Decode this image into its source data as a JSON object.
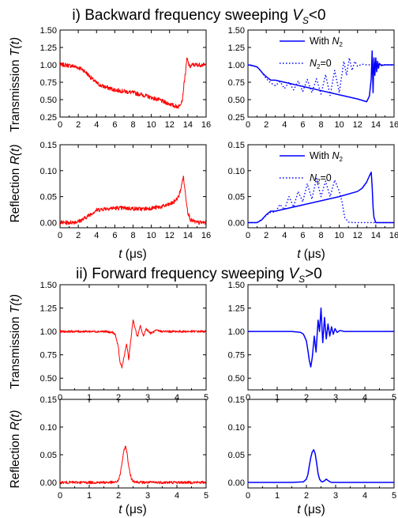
{
  "headings": {
    "section_i": {
      "text": "i) Backward frequency sweeping ",
      "var": "V",
      "sub": "S",
      "rel": "<0"
    },
    "section_ii": {
      "text": "ii) Forward frequency sweeping ",
      "var": "V",
      "sub": "S",
      "rel": ">0"
    }
  },
  "labels": {
    "transmission": "Transmission ",
    "transmission_var": "T(t)",
    "reflection": "Reflection ",
    "reflection_var": "R(t)",
    "time_var": "t",
    "time_unit": " (μs)"
  },
  "legend": {
    "with_prefix": "With ",
    "with_var": "N",
    "with_sub": "2",
    "zero_var": "N",
    "zero_sub": "2",
    "zero_suffix": "=0"
  },
  "colors": {
    "experiment": "#ff0000",
    "theory": "#0000ff",
    "axes": "#000000"
  },
  "chart_data": [
    {
      "id": "i-exp-T",
      "type": "line",
      "xlim": [
        0,
        16
      ],
      "ylim": [
        0.25,
        1.5
      ],
      "xticks": [
        "0",
        "2",
        "4",
        "6",
        "8",
        "10",
        "12",
        "14",
        "16"
      ],
      "yticks": [
        "0.25",
        "0.50",
        "0.75",
        "1.00",
        "1.25",
        "1.50"
      ],
      "series": [
        {
          "style": "solid",
          "color": "#ff0000",
          "noise": 0.03,
          "x": [
            0,
            0.5,
            1,
            1.5,
            2,
            2.5,
            3,
            3.5,
            4,
            4.5,
            5,
            6,
            7,
            8,
            9,
            10,
            11,
            11.5,
            12,
            12.5,
            13,
            13.4,
            13.6,
            13.8,
            13.9,
            14,
            14.2,
            14.5,
            15,
            16
          ],
          "y": [
            1.0,
            1.0,
            0.99,
            0.98,
            0.96,
            0.93,
            0.87,
            0.8,
            0.74,
            0.7,
            0.68,
            0.64,
            0.62,
            0.6,
            0.57,
            0.53,
            0.49,
            0.46,
            0.44,
            0.41,
            0.4,
            0.5,
            0.75,
            0.95,
            1.1,
            1.05,
            0.97,
            1.0,
            1.0,
            1.0
          ]
        }
      ]
    },
    {
      "id": "i-th-T",
      "type": "line",
      "xlim": [
        0,
        16
      ],
      "ylim": [
        0.25,
        1.5
      ],
      "xticks": [
        "0",
        "2",
        "4",
        "6",
        "8",
        "10",
        "12",
        "14",
        "16"
      ],
      "yticks": [
        "0.25",
        "0.50",
        "0.75",
        "1.00",
        "1.25",
        "1.50"
      ],
      "legend": "top-right",
      "series": [
        {
          "style": "solid",
          "color": "#0000ff",
          "legend_key": "with",
          "x": [
            0,
            0.5,
            1,
            1.3,
            1.6,
            2,
            2.5,
            3,
            4,
            6,
            8,
            10,
            12,
            12.5,
            13,
            13.3,
            13.5,
            13.6,
            13.7,
            13.8,
            13.9,
            14,
            14.1,
            14.2,
            14.3,
            14.4,
            14.6,
            15,
            16
          ],
          "y": [
            1.0,
            0.99,
            0.97,
            0.93,
            0.88,
            0.83,
            0.78,
            0.78,
            0.75,
            0.69,
            0.63,
            0.57,
            0.51,
            0.49,
            0.47,
            0.55,
            0.8,
            1.2,
            0.6,
            1.1,
            0.85,
            1.1,
            0.9,
            1.05,
            0.95,
            1.02,
            0.99,
            1.0,
            1.0
          ]
        },
        {
          "style": "dotted",
          "color": "#0000ff",
          "legend_key": "zero",
          "x": [
            0,
            1,
            1.5,
            2,
            2.5,
            3,
            3.5,
            4,
            4.5,
            5,
            5.5,
            6,
            6.5,
            7,
            7.5,
            8,
            8.5,
            9,
            9.5,
            10,
            10.5,
            10.8,
            11.1,
            11.4,
            11.7,
            12,
            12.5,
            13,
            16
          ],
          "y": [
            1.0,
            0.97,
            0.9,
            0.8,
            0.74,
            0.7,
            0.76,
            0.66,
            0.75,
            0.64,
            0.77,
            0.62,
            0.79,
            0.6,
            0.8,
            0.58,
            0.86,
            0.56,
            0.92,
            0.6,
            1.05,
            0.85,
            1.1,
            0.92,
            1.05,
            0.98,
            1.01,
            1.0,
            1.0
          ]
        }
      ]
    },
    {
      "id": "i-exp-R",
      "type": "line",
      "xlim": [
        0,
        16
      ],
      "ylim": [
        -0.01,
        0.15
      ],
      "xticks": [
        "0",
        "2",
        "4",
        "6",
        "8",
        "10",
        "12",
        "14",
        "16"
      ],
      "yticks": [
        "0.00",
        "0.05",
        "0.10",
        "0.15"
      ],
      "series": [
        {
          "style": "solid",
          "color": "#ff0000",
          "noise": 0.004,
          "x": [
            0,
            1,
            2,
            2.5,
            3,
            3.5,
            4,
            5,
            6,
            7,
            8,
            9,
            10,
            11,
            12,
            12.5,
            13,
            13.3,
            13.5,
            13.7,
            14,
            14.3,
            15,
            16
          ],
          "y": [
            0.0,
            0.0,
            0.002,
            0.006,
            0.012,
            0.018,
            0.024,
            0.027,
            0.028,
            0.028,
            0.027,
            0.026,
            0.028,
            0.03,
            0.035,
            0.04,
            0.05,
            0.07,
            0.09,
            0.06,
            0.02,
            0.005,
            0.0,
            0.0
          ]
        }
      ]
    },
    {
      "id": "i-th-R",
      "type": "line",
      "xlim": [
        0,
        16
      ],
      "ylim": [
        -0.01,
        0.15
      ],
      "xticks": [
        "0",
        "2",
        "4",
        "6",
        "8",
        "10",
        "12",
        "14",
        "16"
      ],
      "yticks": [
        "0.00",
        "0.05",
        "0.10",
        "0.15"
      ],
      "legend": "top-right",
      "series": [
        {
          "style": "solid",
          "color": "#0000ff",
          "legend_key": "with",
          "x": [
            0,
            1,
            1.5,
            2,
            2.5,
            3,
            4,
            6,
            8,
            10,
            12,
            12.5,
            13,
            13.3,
            13.5,
            13.6,
            13.7,
            13.8,
            14,
            14.2,
            15,
            16
          ],
          "y": [
            0.0,
            0.0,
            0.005,
            0.015,
            0.022,
            0.022,
            0.026,
            0.034,
            0.042,
            0.05,
            0.06,
            0.066,
            0.078,
            0.09,
            0.097,
            0.07,
            0.03,
            0.01,
            0.0,
            0.0,
            0.0,
            0.0
          ]
        },
        {
          "style": "dotted",
          "color": "#0000ff",
          "legend_key": "zero",
          "x": [
            0,
            1,
            1.5,
            2,
            2.5,
            3,
            3.5,
            4,
            4.5,
            5,
            5.5,
            6,
            6.5,
            7,
            7.5,
            8,
            8.5,
            9,
            9.5,
            10,
            10.3,
            10.6,
            11,
            11.5,
            12,
            16
          ],
          "y": [
            0.0,
            0.0,
            0.006,
            0.014,
            0.02,
            0.02,
            0.035,
            0.025,
            0.05,
            0.03,
            0.06,
            0.04,
            0.075,
            0.045,
            0.085,
            0.05,
            0.08,
            0.05,
            0.082,
            0.06,
            0.04,
            0.01,
            0.001,
            0.0,
            0.0,
            0.0
          ]
        }
      ]
    },
    {
      "id": "ii-exp-T",
      "type": "line",
      "xlim": [
        0,
        5
      ],
      "ylim": [
        0.375,
        1.5
      ],
      "xticks": [
        "0",
        "1",
        "2",
        "3",
        "4",
        "5"
      ],
      "yticks": [
        "0.50",
        "0.75",
        "1.00",
        "1.25",
        "1.50"
      ],
      "series": [
        {
          "style": "solid",
          "color": "#ff0000",
          "noise": 0.012,
          "x": [
            0,
            0.5,
            1,
            1.5,
            1.8,
            1.9,
            2.0,
            2.05,
            2.12,
            2.2,
            2.28,
            2.35,
            2.42,
            2.5,
            2.58,
            2.65,
            2.75,
            2.85,
            2.95,
            3.1,
            3.3,
            3.5,
            4,
            4.5,
            5
          ],
          "y": [
            1.0,
            1.0,
            1.0,
            1.0,
            0.99,
            0.96,
            0.82,
            0.67,
            0.62,
            0.74,
            0.87,
            0.7,
            0.9,
            1.13,
            1.02,
            0.94,
            1.06,
            0.95,
            1.03,
            0.98,
            1.01,
            1.0,
            1.0,
            1.0,
            1.0
          ]
        }
      ]
    },
    {
      "id": "ii-th-T",
      "type": "line",
      "xlim": [
        0,
        5
      ],
      "ylim": [
        0.375,
        1.5
      ],
      "xticks": [
        "0",
        "1",
        "2",
        "3",
        "4",
        "5"
      ],
      "yticks": [
        "0.50",
        "0.75",
        "1.00",
        "1.25",
        "1.50"
      ],
      "series": [
        {
          "style": "solid",
          "color": "#0000ff",
          "x": [
            0,
            1,
            1.5,
            1.8,
            1.9,
            2.0,
            2.05,
            2.1,
            2.15,
            2.2,
            2.27,
            2.33,
            2.4,
            2.45,
            2.5,
            2.56,
            2.62,
            2.68,
            2.74,
            2.8,
            2.86,
            2.92,
            2.98,
            3.05,
            3.15,
            3.3,
            3.6,
            4,
            5
          ],
          "y": [
            1.0,
            1.0,
            1.0,
            0.99,
            0.97,
            0.9,
            0.8,
            0.69,
            0.62,
            0.72,
            0.95,
            0.78,
            1.12,
            1.0,
            1.25,
            0.88,
            1.15,
            0.92,
            1.08,
            0.95,
            1.05,
            0.97,
            1.03,
            0.99,
            1.01,
            1.0,
            1.0,
            1.0,
            1.0
          ]
        }
      ]
    },
    {
      "id": "ii-exp-R",
      "type": "line",
      "xlim": [
        0,
        5
      ],
      "ylim": [
        -0.01,
        0.15
      ],
      "xticks": [
        "0",
        "1",
        "2",
        "3",
        "4",
        "5"
      ],
      "yticks": [
        "0.00",
        "0.05",
        "0.10",
        "0.15"
      ],
      "series": [
        {
          "style": "solid",
          "color": "#ff0000",
          "noise": 0.0025,
          "x": [
            0,
            1,
            1.5,
            1.9,
            2.0,
            2.05,
            2.1,
            2.15,
            2.2,
            2.25,
            2.3,
            2.35,
            2.4,
            2.45,
            2.5,
            2.6,
            2.8,
            3,
            4,
            5
          ],
          "y": [
            0.0,
            0.0,
            0.0,
            0.0,
            0.004,
            0.012,
            0.028,
            0.045,
            0.06,
            0.066,
            0.05,
            0.03,
            0.015,
            0.006,
            0.003,
            0.001,
            0.0,
            0.0,
            0.0,
            0.0
          ]
        }
      ]
    },
    {
      "id": "ii-th-R",
      "type": "line",
      "xlim": [
        0,
        5
      ],
      "ylim": [
        -0.01,
        0.15
      ],
      "xticks": [
        "0",
        "1",
        "2",
        "3",
        "4",
        "5"
      ],
      "yticks": [
        "0.00",
        "0.05",
        "0.10",
        "0.15"
      ],
      "series": [
        {
          "style": "solid",
          "color": "#0000ff",
          "x": [
            0,
            1,
            1.5,
            1.9,
            2.0,
            2.05,
            2.1,
            2.15,
            2.2,
            2.25,
            2.3,
            2.35,
            2.4,
            2.45,
            2.5,
            2.55,
            2.62,
            2.68,
            2.75,
            2.85,
            3,
            4,
            5
          ],
          "y": [
            0.0,
            0.0,
            0.0,
            0.001,
            0.006,
            0.014,
            0.03,
            0.045,
            0.055,
            0.059,
            0.052,
            0.035,
            0.016,
            0.006,
            0.002,
            0.001,
            0.003,
            0.006,
            0.003,
            0.0,
            0.0,
            0.0,
            0.0
          ]
        }
      ]
    }
  ]
}
